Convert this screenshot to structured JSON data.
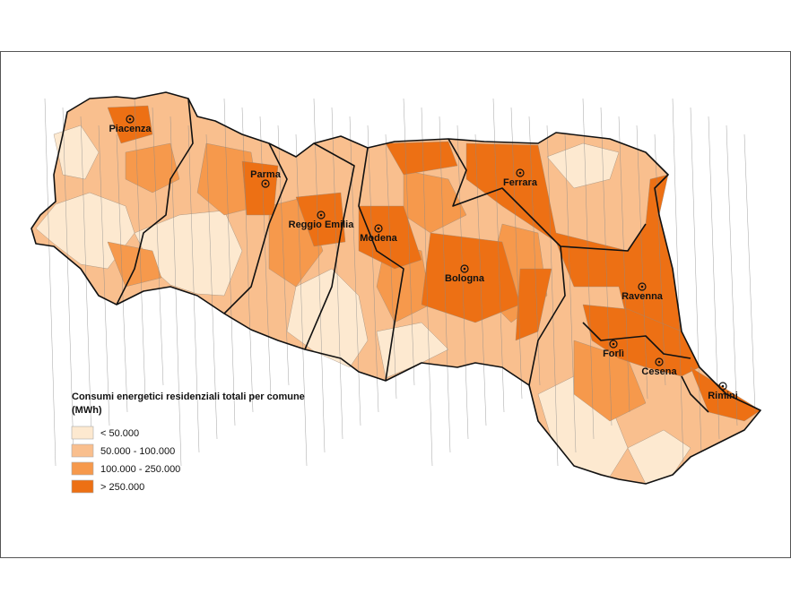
{
  "map": {
    "cities": [
      "Piacenza",
      "Parma",
      "Reggio Emilia",
      "Modena",
      "Bologna",
      "Ferrara",
      "Ravenna",
      "Forlì",
      "Cesena",
      "Rimini"
    ],
    "legend": {
      "title_lines": [
        "Consumi energetici residenziali totali per comune",
        "(MWh)"
      ],
      "items": [
        {
          "label": "< 50.000",
          "color": "#fde9d0"
        },
        {
          "label": "50.000 - 100.000",
          "color": "#f9bf8e"
        },
        {
          "label": "100.000 - 250.000",
          "color": "#f6994c"
        },
        {
          "label": "> 250.000",
          "color": "#ed7014"
        }
      ]
    }
  }
}
